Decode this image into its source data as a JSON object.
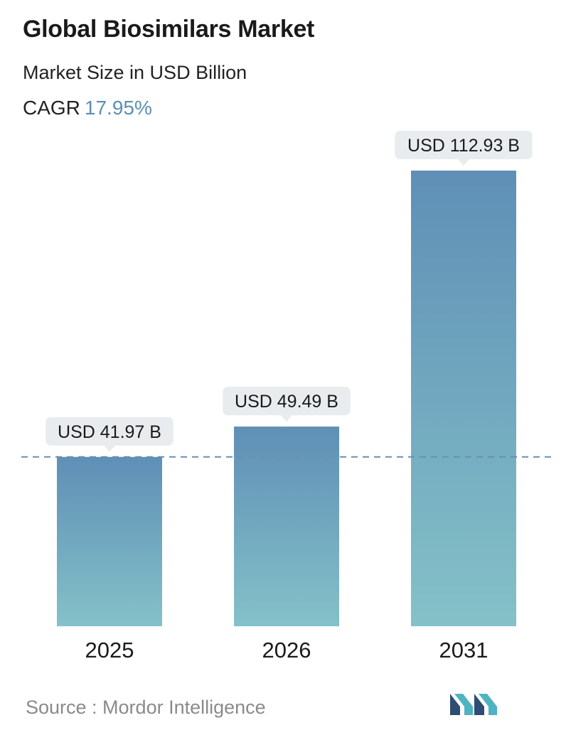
{
  "header": {
    "title": "Global Biosimilars Market",
    "subtitle": "Market Size in USD Billion",
    "cagr_label": "CAGR",
    "cagr_value": "17.95%"
  },
  "chart_data": {
    "type": "bar",
    "title": "Global Biosimilars Market",
    "subtitle": "Market Size in USD Billion",
    "categories": [
      "2025",
      "2026",
      "2031"
    ],
    "values": [
      41.97,
      49.49,
      112.93
    ],
    "data_labels": [
      "USD 41.97 B",
      "USD 49.49 B",
      "USD 112.93 B"
    ],
    "ylim": [
      0,
      112.93
    ],
    "grid": false,
    "reference_line": 41.97,
    "colors": {
      "bar_top": "#5f8fb6",
      "bar_bottom": "#84c1c8",
      "label_bg": "#e9ecee",
      "dash": "#6a8fae"
    }
  },
  "footer": {
    "source": "Source :  Mordor Intelligence",
    "logo_icon": "mordor-intelligence-logo-icon"
  }
}
